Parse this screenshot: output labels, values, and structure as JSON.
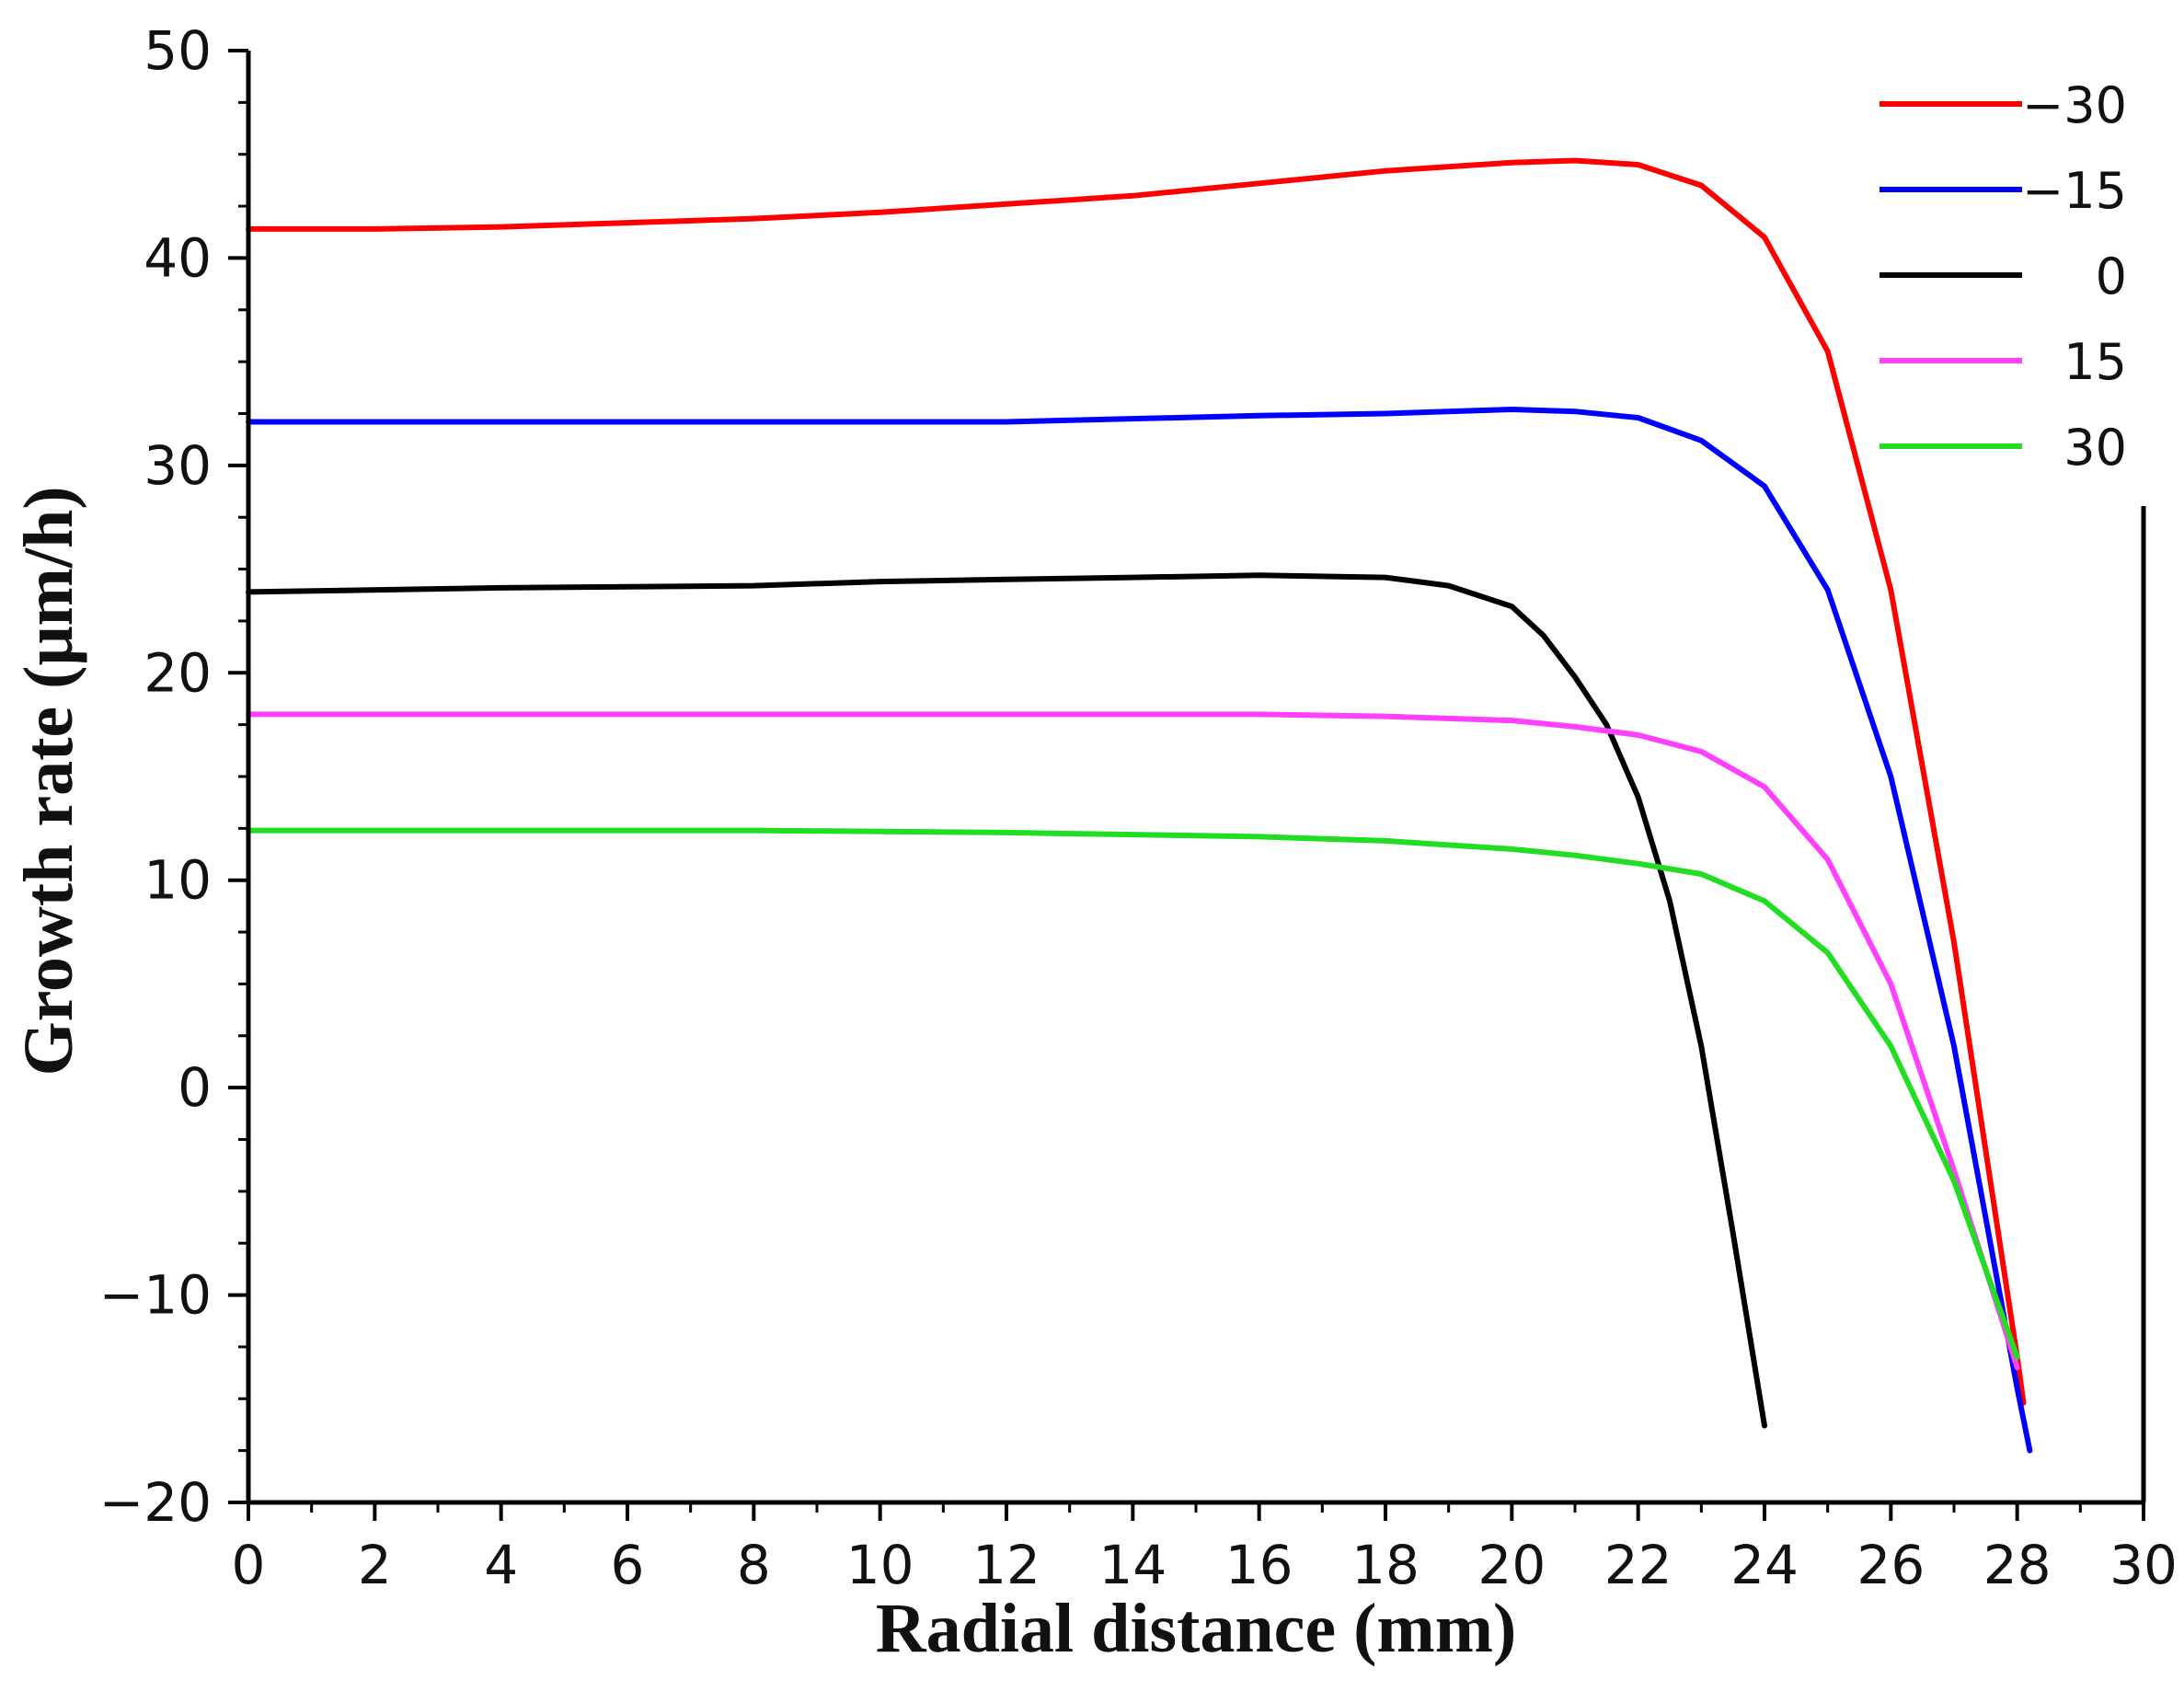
{
  "chart_data": {
    "type": "line",
    "title": "",
    "xlabel": "Radial distance (mm)",
    "ylabel": "Growth rate (μm/h)",
    "xlim": [
      0,
      30
    ],
    "ylim": [
      -20,
      50
    ],
    "xticks": [
      0,
      2,
      4,
      6,
      8,
      10,
      12,
      14,
      16,
      18,
      20,
      22,
      24,
      26,
      28,
      30
    ],
    "xtick_labels": [
      "0",
      "2",
      "4",
      "6",
      "8",
      "10",
      "12",
      "14",
      "16",
      "18",
      "20",
      "22",
      "24",
      "26",
      "28",
      "30"
    ],
    "yticks": [
      -20,
      -10,
      0,
      10,
      20,
      30,
      40,
      50
    ],
    "ytick_labels": [
      "−20",
      "−10",
      "0",
      "10",
      "20",
      "30",
      "40",
      "50"
    ],
    "grid": false,
    "legend_position": "top-right",
    "series": [
      {
        "name": "−30",
        "color": "#ff0000",
        "points": [
          [
            0,
            41.4
          ],
          [
            2,
            41.4
          ],
          [
            4,
            41.5
          ],
          [
            6,
            41.7
          ],
          [
            8,
            41.9
          ],
          [
            10,
            42.2
          ],
          [
            12,
            42.6
          ],
          [
            14,
            43.0
          ],
          [
            16,
            43.6
          ],
          [
            18,
            44.2
          ],
          [
            20,
            44.6
          ],
          [
            21,
            44.7
          ],
          [
            22,
            44.5
          ],
          [
            23,
            43.5
          ],
          [
            24,
            41.0
          ],
          [
            25,
            35.5
          ],
          [
            26,
            24.0
          ],
          [
            27,
            7.0
          ],
          [
            28,
            -13.0
          ],
          [
            28.1,
            -15.2
          ]
        ]
      },
      {
        "name": "−15",
        "color": "#0000ff",
        "points": [
          [
            0,
            32.1
          ],
          [
            4,
            32.1
          ],
          [
            8,
            32.1
          ],
          [
            12,
            32.1
          ],
          [
            16,
            32.4
          ],
          [
            18,
            32.5
          ],
          [
            20,
            32.7
          ],
          [
            21,
            32.6
          ],
          [
            22,
            32.3
          ],
          [
            23,
            31.2
          ],
          [
            24,
            29.0
          ],
          [
            25,
            24.0
          ],
          [
            26,
            15.0
          ],
          [
            27,
            2.0
          ],
          [
            28,
            -14.5
          ],
          [
            28.2,
            -17.5
          ]
        ]
      },
      {
        "name": "0",
        "color": "#000000",
        "points": [
          [
            0,
            23.9
          ],
          [
            4,
            24.1
          ],
          [
            8,
            24.2
          ],
          [
            10,
            24.4
          ],
          [
            12,
            24.5
          ],
          [
            14,
            24.6
          ],
          [
            16,
            24.7
          ],
          [
            18,
            24.6
          ],
          [
            19,
            24.2
          ],
          [
            20,
            23.2
          ],
          [
            20.5,
            21.8
          ],
          [
            21,
            19.8
          ],
          [
            21.5,
            17.5
          ],
          [
            22,
            14.0
          ],
          [
            22.5,
            9.0
          ],
          [
            23,
            2.0
          ],
          [
            23.5,
            -7.0
          ],
          [
            24,
            -16.3
          ]
        ]
      },
      {
        "name": "15",
        "color": "#ff40ff",
        "points": [
          [
            0,
            18.0
          ],
          [
            4,
            18.0
          ],
          [
            8,
            18.0
          ],
          [
            12,
            18.0
          ],
          [
            16,
            18.0
          ],
          [
            18,
            17.9
          ],
          [
            20,
            17.7
          ],
          [
            21,
            17.4
          ],
          [
            22,
            17.0
          ],
          [
            23,
            16.2
          ],
          [
            24,
            14.5
          ],
          [
            25,
            11.0
          ],
          [
            26,
            5.0
          ],
          [
            27,
            -4.0
          ],
          [
            28,
            -13.5
          ]
        ]
      },
      {
        "name": "30",
        "color": "#22dd22",
        "points": [
          [
            0,
            12.4
          ],
          [
            4,
            12.4
          ],
          [
            8,
            12.4
          ],
          [
            12,
            12.3
          ],
          [
            16,
            12.1
          ],
          [
            18,
            11.9
          ],
          [
            20,
            11.5
          ],
          [
            21,
            11.2
          ],
          [
            22,
            10.8
          ],
          [
            23,
            10.3
          ],
          [
            24,
            9.0
          ],
          [
            25,
            6.5
          ],
          [
            26,
            2.0
          ],
          [
            27,
            -4.5
          ],
          [
            28,
            -13.0
          ]
        ]
      }
    ]
  }
}
